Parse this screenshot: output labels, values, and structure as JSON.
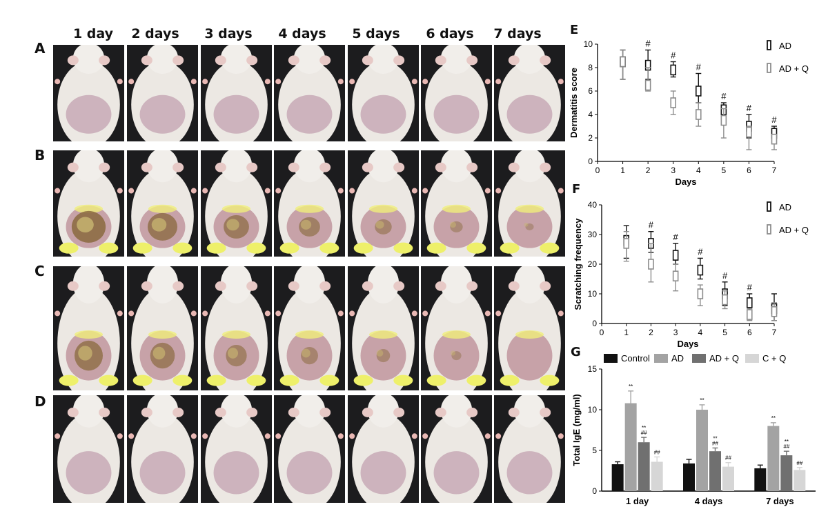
{
  "photo_grid": {
    "columns": [
      "1 day",
      "2 days",
      "3 days",
      "4 days",
      "5 days",
      "6 days",
      "7 days"
    ],
    "rows": [
      {
        "label": "A",
        "condition": "healthy"
      },
      {
        "label": "B",
        "condition": "severe"
      },
      {
        "label": "C",
        "condition": "moderate"
      },
      {
        "label": "D",
        "condition": "healthy"
      }
    ]
  },
  "colors": {
    "ad": "#111111",
    "adq": "#8c8c8c",
    "control": "#111111",
    "ad_bar": "#a3a3a3",
    "adq_bar": "#707070",
    "cq_bar": "#d6d6d6"
  },
  "chart_data": [
    {
      "panel": "E",
      "type": "scatter",
      "xlabel": "Days",
      "ylabel": "Dermatitis score",
      "xlim": [
        0,
        7
      ],
      "ylim": [
        0,
        10
      ],
      "xticks": [
        0,
        1,
        2,
        3,
        4,
        5,
        6,
        7
      ],
      "yticks": [
        0,
        2,
        4,
        6,
        8,
        10
      ],
      "legend": [
        "AD",
        "AD + Q"
      ],
      "legend_position": "top-right",
      "series": [
        {
          "name": "AD",
          "x": [
            1,
            2,
            3,
            4,
            5,
            6,
            7
          ],
          "mean": [
            8.5,
            8.2,
            7.8,
            6.0,
            4.4,
            3.0,
            2.4
          ],
          "low": [
            7.0,
            7.0,
            7.2,
            5.0,
            3.8,
            2.0,
            1.6
          ],
          "high": [
            9.5,
            9.5,
            8.5,
            7.5,
            5.0,
            4.0,
            3.0
          ]
        },
        {
          "name": "AD + Q",
          "x": [
            1,
            2,
            3,
            4,
            5,
            6,
            7
          ],
          "mean": [
            8.5,
            6.5,
            5.0,
            4.0,
            3.5,
            2.5,
            1.9
          ],
          "low": [
            7.0,
            6.0,
            4.0,
            3.0,
            2.0,
            1.0,
            1.0
          ],
          "high": [
            9.5,
            8.0,
            6.0,
            5.0,
            4.5,
            3.0,
            2.2
          ]
        }
      ],
      "annotations": [
        {
          "x": 2,
          "y": 9.5,
          "text": "#"
        },
        {
          "x": 3,
          "y": 8.5,
          "text": "#"
        },
        {
          "x": 4,
          "y": 7.5,
          "text": "#"
        },
        {
          "x": 5,
          "y": 5.0,
          "text": "#"
        },
        {
          "x": 6,
          "y": 4.0,
          "text": "#"
        },
        {
          "x": 7,
          "y": 3.0,
          "text": "#"
        }
      ]
    },
    {
      "panel": "F",
      "type": "scatter",
      "xlabel": "Days",
      "ylabel": "Scratching frequency",
      "xlim": [
        0,
        7
      ],
      "ylim": [
        0,
        40
      ],
      "xticks": [
        0,
        1,
        2,
        3,
        4,
        5,
        6,
        7
      ],
      "yticks": [
        0,
        10,
        20,
        30,
        40
      ],
      "legend": [
        "AD",
        "AD + Q"
      ],
      "legend_position": "top-right",
      "series": [
        {
          "name": "AD",
          "x": [
            1,
            2,
            3,
            4,
            5,
            6,
            7
          ],
          "mean": [
            28,
            27,
            23,
            18,
            10,
            7,
            5
          ],
          "low": [
            22,
            24,
            20,
            15,
            6,
            4,
            1
          ],
          "high": [
            33,
            31,
            27,
            22,
            14,
            10,
            10
          ]
        },
        {
          "name": "AD + Q",
          "x": [
            1,
            2,
            3,
            4,
            5,
            6,
            7
          ],
          "mean": [
            27,
            20,
            16,
            10,
            8,
            3,
            4
          ],
          "low": [
            21,
            14,
            11,
            6,
            5,
            1,
            1
          ],
          "high": [
            31,
            27,
            20,
            13,
            11,
            5,
            7
          ]
        }
      ],
      "annotations": [
        {
          "x": 2,
          "y": 31,
          "text": "#"
        },
        {
          "x": 3,
          "y": 27,
          "text": "#"
        },
        {
          "x": 4,
          "y": 22,
          "text": "#"
        },
        {
          "x": 5,
          "y": 14,
          "text": "#"
        },
        {
          "x": 6,
          "y": 10,
          "text": "#"
        }
      ]
    },
    {
      "panel": "G",
      "type": "bar",
      "ylabel": "Total IgE  (mg/ml)",
      "ylim": [
        0,
        15
      ],
      "yticks": [
        0,
        5,
        10,
        15
      ],
      "categories": [
        "1 day",
        "4 days",
        "7 days"
      ],
      "legend_position": "top",
      "series": [
        {
          "name": "Control",
          "values": [
            3.3,
            3.4,
            2.8
          ],
          "err": [
            0.3,
            0.5,
            0.4
          ],
          "marks": [
            "",
            "",
            ""
          ]
        },
        {
          "name": "AD",
          "values": [
            10.8,
            10.0,
            8.0
          ],
          "err": [
            1.5,
            0.6,
            0.4
          ],
          "marks": [
            "**",
            "**",
            "**"
          ]
        },
        {
          "name": "AD + Q",
          "values": [
            6.0,
            4.9,
            4.4
          ],
          "err": [
            0.6,
            0.4,
            0.5
          ],
          "marks": [
            "**\n##",
            "**\n##",
            "**\n##"
          ]
        },
        {
          "name": "C + Q",
          "values": [
            3.6,
            3.0,
            2.6
          ],
          "err": [
            0.6,
            0.5,
            0.3
          ],
          "marks": [
            "##",
            "##",
            "##"
          ]
        }
      ]
    }
  ]
}
